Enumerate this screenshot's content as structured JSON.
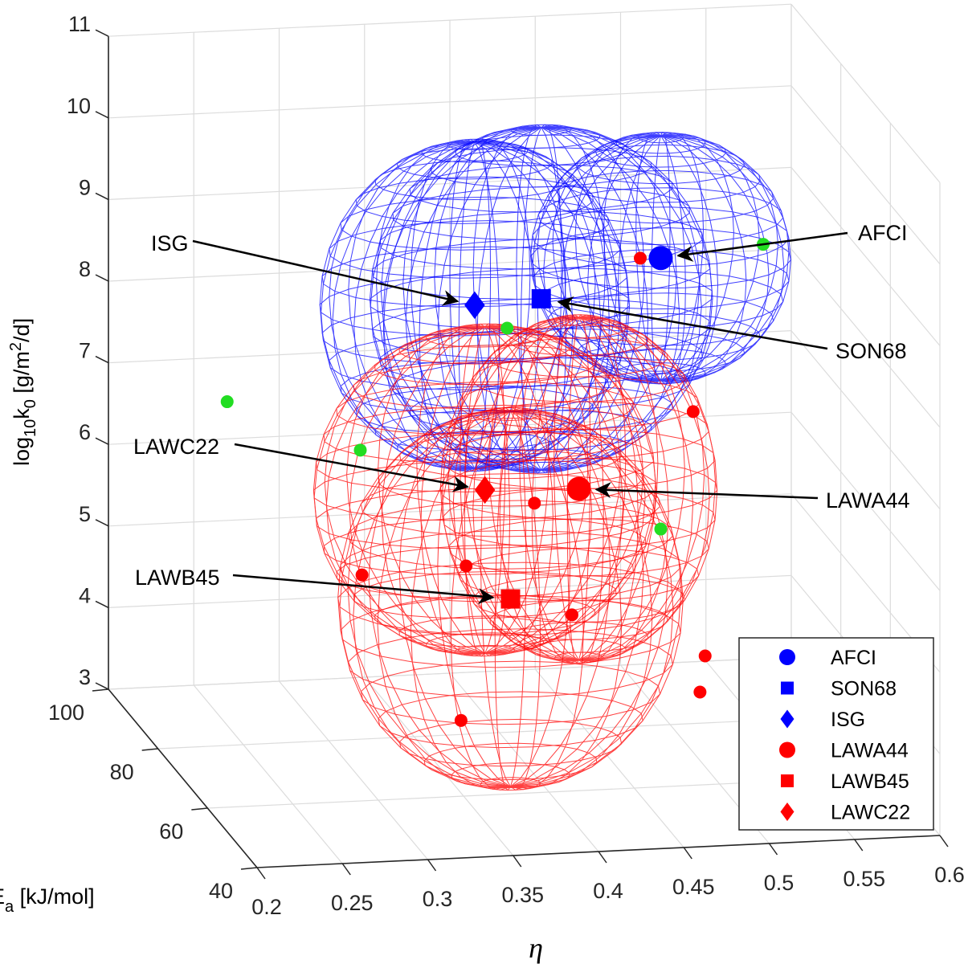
{
  "chart_data": {
    "type": "scatter3d",
    "xlabel": "η",
    "ylabel": "E_a [kJ/mol]",
    "zlabel": "log10 k0 [g/m^2/d]",
    "xlim": [
      0.2,
      0.6
    ],
    "ylim": [
      40,
      100
    ],
    "zlim": [
      3,
      11
    ],
    "xticks": [
      "0.2",
      "0.25",
      "0.3",
      "0.35",
      "0.4",
      "0.45",
      "0.5",
      "0.55",
      "0.6"
    ],
    "yticks": [
      "40",
      "60",
      "80",
      "100"
    ],
    "zticks": [
      "3",
      "4",
      "5",
      "6",
      "7",
      "8",
      "9",
      "10",
      "11"
    ],
    "grid": true,
    "legend_position": "bottom-right",
    "colors": {
      "blue": "#0000ff",
      "red": "#ff0000",
      "green": "#22dd22"
    },
    "glasses": [
      {
        "name": "AFCI",
        "marker": "circle",
        "color": "#0000ff",
        "eta": 0.48,
        "Ea": 70,
        "logk": 9.1,
        "radius": [
          0.075,
          10,
          1.5
        ]
      },
      {
        "name": "SON68",
        "marker": "square",
        "color": "#0000ff",
        "eta": 0.41,
        "Ea": 70,
        "logk": 8.67,
        "radius": [
          0.1,
          10,
          2.1
        ]
      },
      {
        "name": "ISG",
        "marker": "diamond",
        "color": "#0000ff",
        "eta": 0.371,
        "Ea": 70,
        "logk": 8.63,
        "radius": [
          0.09,
          10,
          2.0
        ]
      },
      {
        "name": "LAWA44",
        "marker": "circle",
        "color": "#ff0000",
        "eta": 0.432,
        "Ea": 70,
        "logk": 6.32,
        "radius": [
          0.08,
          10,
          2.1
        ]
      },
      {
        "name": "LAWB45",
        "marker": "square",
        "color": "#ff0000",
        "eta": 0.392,
        "Ea": 70,
        "logk": 5.01,
        "radius": [
          0.1,
          12,
          2.3
        ]
      },
      {
        "name": "LAWC22",
        "marker": "diamond",
        "color": "#ff0000",
        "eta": 0.377,
        "Ea": 70,
        "logk": 6.36,
        "radius": [
          0.1,
          10,
          2.0
        ]
      }
    ],
    "small_points": [
      {
        "color": "#22dd22",
        "eta": 0.226,
        "Ea": 70,
        "logk": 7.59
      },
      {
        "color": "#22dd22",
        "eta": 0.304,
        "Ea": 70,
        "logk": 6.92
      },
      {
        "color": "#22dd22",
        "eta": 0.39,
        "Ea": 70,
        "logk": 8.33
      },
      {
        "color": "#22dd22",
        "eta": 0.54,
        "Ea": 70,
        "logk": 9.21
      },
      {
        "color": "#22dd22",
        "eta": 0.48,
        "Ea": 70,
        "logk": 5.78
      },
      {
        "color": "#ff0000",
        "eta": 0.468,
        "Ea": 70,
        "logk": 9.11
      },
      {
        "color": "#ff0000",
        "eta": 0.499,
        "Ea": 70,
        "logk": 7.2
      },
      {
        "color": "#ff0000",
        "eta": 0.406,
        "Ea": 70,
        "logk": 6.17
      },
      {
        "color": "#ff0000",
        "eta": 0.366,
        "Ea": 70,
        "logk": 5.44
      },
      {
        "color": "#ff0000",
        "eta": 0.305,
        "Ea": 70,
        "logk": 5.39
      },
      {
        "color": "#ff0000",
        "eta": 0.428,
        "Ea": 70,
        "logk": 4.78
      },
      {
        "color": "#ff0000",
        "eta": 0.506,
        "Ea": 70,
        "logk": 4.2
      },
      {
        "color": "#ff0000",
        "eta": 0.503,
        "Ea": 70,
        "logk": 3.76
      },
      {
        "color": "#ff0000",
        "eta": 0.363,
        "Ea": 70,
        "logk": 3.55
      }
    ],
    "annotations": [
      "ISG",
      "AFCI",
      "SON68",
      "LAWC22",
      "LAWA44",
      "LAWB45"
    ],
    "legend": [
      "AFCI",
      "SON68",
      "ISG",
      "LAWA44",
      "LAWB45",
      "LAWC22"
    ]
  }
}
